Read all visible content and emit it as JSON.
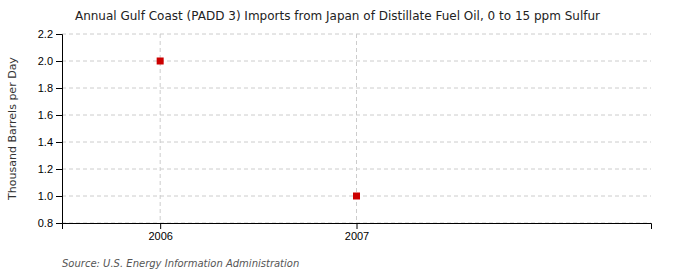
{
  "chart_data": {
    "type": "scatter",
    "title": "Annual Gulf Coast (PADD 3) Imports from Japan of Distillate Fuel Oil, 0 to 15 ppm Sulfur",
    "ylabel": "Thousand Barrels per Day",
    "source": "Source: U.S. Energy Information Administration",
    "x": [
      2006,
      2007
    ],
    "values": [
      2.0,
      1.0
    ],
    "color": "#cc0000",
    "marker": "square",
    "xlim": [
      2005.5,
      2008.5
    ],
    "xticks": [
      2006,
      2007
    ],
    "ylim": [
      0.8,
      2.2
    ],
    "yticks": [
      0.8,
      {
        "value": 1.0,
        "label": "1.0"
      },
      1.2,
      1.4,
      1.6,
      1.8,
      {
        "value": 2.0,
        "label": "2.0"
      },
      2.2
    ],
    "grid": true
  }
}
